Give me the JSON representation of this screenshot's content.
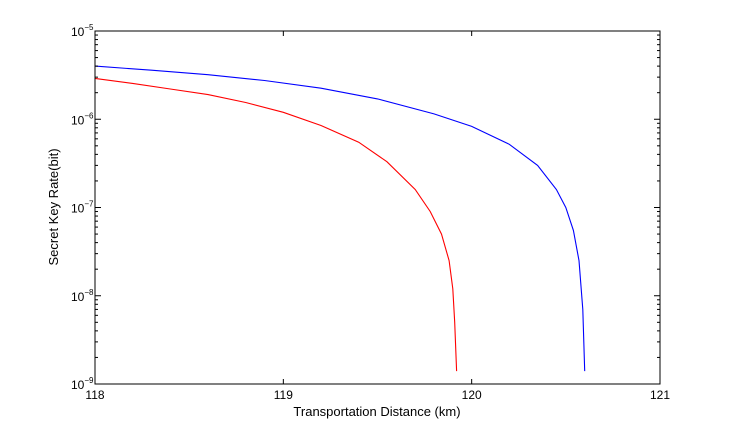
{
  "chart_data": {
    "type": "line",
    "title": "",
    "xlabel": "Transportation Distance (km)",
    "ylabel": "Secret Key Rate(bit)",
    "xlim": [
      118,
      121
    ],
    "ylim": [
      1e-09,
      1e-05
    ],
    "yscale": "log",
    "grid": false,
    "legend": "none",
    "x_ticks": [
      "118",
      "119",
      "120",
      "121"
    ],
    "y_ticks": [
      {
        "value": 1e-09,
        "base": "10",
        "exp": "−9"
      },
      {
        "value": 1e-08,
        "base": "10",
        "exp": "−8"
      },
      {
        "value": 1e-07,
        "base": "10",
        "exp": "−7"
      },
      {
        "value": 1e-06,
        "base": "10",
        "exp": "−6"
      },
      {
        "value": 1e-05,
        "base": "10",
        "exp": "−5"
      }
    ],
    "series": [
      {
        "color": "#0000ff",
        "x": [
          118.0,
          118.3,
          118.6,
          118.9,
          119.2,
          119.5,
          119.8,
          120.0,
          120.2,
          120.35,
          120.45,
          120.5,
          120.54,
          120.57,
          120.59,
          120.6
        ],
        "y": [
          4e-06,
          3.6e-06,
          3.2e-06,
          2.75e-06,
          2.25e-06,
          1.7e-06,
          1.15e-06,
          8.3e-07,
          5.2e-07,
          3e-07,
          1.6e-07,
          1e-07,
          5.5e-08,
          2.5e-08,
          7e-09,
          1.4e-09
        ]
      },
      {
        "color": "#ff0000",
        "x": [
          118.0,
          118.2,
          118.4,
          118.6,
          118.8,
          119.0,
          119.2,
          119.4,
          119.55,
          119.7,
          119.78,
          119.84,
          119.88,
          119.9,
          119.91,
          119.92
        ],
        "y": [
          2.9e-06,
          2.55e-06,
          2.2e-06,
          1.9e-06,
          1.55e-06,
          1.2e-06,
          8.5e-07,
          5.5e-07,
          3.3e-07,
          1.6e-07,
          9e-08,
          5e-08,
          2.5e-08,
          1.2e-08,
          5e-09,
          1.4e-09
        ]
      }
    ]
  }
}
